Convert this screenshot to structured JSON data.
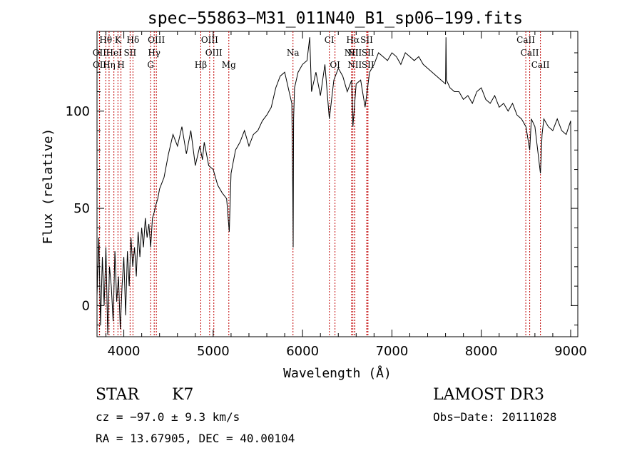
{
  "chart_data": {
    "type": "line",
    "title": "spec−55863−M31_011N40_B1_sp06−199.fits",
    "xlabel": "Wavelength (Å)",
    "ylabel": "Flux (relative)",
    "xlim": [
      3700,
      9080
    ],
    "ylim": [
      -16,
      141
    ],
    "xticks": [
      4000,
      5000,
      6000,
      7000,
      8000,
      9000
    ],
    "yticks": [
      0,
      50,
      100
    ],
    "line_color": "#000000",
    "marker_color": "#c00000",
    "spectrum": {
      "x": [
        3700,
        3720,
        3740,
        3760,
        3780,
        3800,
        3820,
        3840,
        3860,
        3880,
        3900,
        3920,
        3940,
        3960,
        3980,
        4000,
        4020,
        4040,
        4060,
        4080,
        4100,
        4120,
        4140,
        4160,
        4180,
        4200,
        4220,
        4240,
        4260,
        4280,
        4300,
        4320,
        4340,
        4360,
        4380,
        4400,
        4450,
        4500,
        4550,
        4600,
        4650,
        4700,
        4750,
        4800,
        4850,
        4880,
        4900,
        4950,
        5000,
        5050,
        5100,
        5150,
        5180,
        5200,
        5250,
        5300,
        5350,
        5400,
        5450,
        5500,
        5550,
        5600,
        5650,
        5700,
        5750,
        5800,
        5850,
        5880,
        5890,
        5895,
        5900,
        5910,
        5950,
        6000,
        6050,
        6080,
        6100,
        6150,
        6200,
        6250,
        6300,
        6350,
        6400,
        6450,
        6500,
        6550,
        6563,
        6600,
        6650,
        6700,
        6750,
        6800,
        6850,
        6900,
        6950,
        7000,
        7050,
        7100,
        7150,
        7200,
        7250,
        7300,
        7350,
        7400,
        7450,
        7500,
        7550,
        7600,
        7605,
        7610,
        7650,
        7700,
        7750,
        7800,
        7850,
        7900,
        7950,
        8000,
        8050,
        8100,
        8150,
        8200,
        8250,
        8300,
        8350,
        8400,
        8450,
        8500,
        8542,
        8560,
        8600,
        8662,
        8680,
        8700,
        8750,
        8800,
        8850,
        8900,
        8950,
        9000,
        9005,
        9010,
        9020
      ],
      "y": [
        5,
        35,
        -10,
        25,
        0,
        30,
        -15,
        20,
        10,
        -8,
        28,
        2,
        15,
        -12,
        10,
        25,
        -5,
        28,
        10,
        35,
        20,
        30,
        15,
        38,
        25,
        40,
        30,
        45,
        35,
        42,
        30,
        45,
        48,
        52,
        55,
        60,
        66,
        78,
        88,
        82,
        92,
        78,
        90,
        72,
        82,
        75,
        84,
        72,
        70,
        62,
        58,
        55,
        38,
        68,
        80,
        84,
        90,
        82,
        88,
        90,
        95,
        98,
        102,
        112,
        118,
        120,
        110,
        104,
        60,
        30,
        96,
        112,
        120,
        124,
        126,
        138,
        110,
        120,
        108,
        124,
        96,
        116,
        122,
        118,
        110,
        116,
        92,
        114,
        116,
        102,
        120,
        124,
        130,
        128,
        126,
        130,
        128,
        124,
        130,
        128,
        126,
        128,
        124,
        122,
        120,
        118,
        116,
        114,
        138,
        116,
        112,
        110,
        110,
        106,
        108,
        104,
        110,
        112,
        106,
        104,
        108,
        102,
        104,
        100,
        104,
        98,
        96,
        92,
        80,
        96,
        92,
        68,
        88,
        96,
        92,
        90,
        96,
        90,
        88,
        95,
        60,
        0,
        0
      ]
    },
    "emission_lines": [
      {
        "name": "Hθ",
        "x": 3798,
        "row": 1
      },
      {
        "name": "K",
        "x": 3934,
        "row": 1
      },
      {
        "name": "Hδ",
        "x": 4102,
        "row": 1
      },
      {
        "name": "OIII",
        "x": 4364,
        "row": 1
      },
      {
        "name": "OIII",
        "x": 4960,
        "row": 1
      },
      {
        "name": "CI",
        "x": 6300,
        "row": 1
      },
      {
        "name": "Hα",
        "x": 6563,
        "row": 1
      },
      {
        "name": "SII",
        "x": 6717,
        "row": 1
      },
      {
        "name": "CaII",
        "x": 8498,
        "row": 1
      },
      {
        "name": "OII",
        "x": 3727,
        "row": 2
      },
      {
        "name": "HeI",
        "x": 3889,
        "row": 2
      },
      {
        "name": "SII",
        "x": 4070,
        "row": 2
      },
      {
        "name": "Hγ",
        "x": 4340,
        "row": 2
      },
      {
        "name": "OIII",
        "x": 5007,
        "row": 2
      },
      {
        "name": "Na",
        "x": 5893,
        "row": 2
      },
      {
        "name": "NII",
        "x": 6548,
        "row": 2
      },
      {
        "name": "NII",
        "x": 6584,
        "row": 2
      },
      {
        "name": "SII",
        "x": 6731,
        "row": 2
      },
      {
        "name": "CaII",
        "x": 8542,
        "row": 2
      },
      {
        "name": "OII",
        "x": 3729,
        "row": 3
      },
      {
        "name": "Hη",
        "x": 3835,
        "row": 3
      },
      {
        "name": "H",
        "x": 3968,
        "row": 3
      },
      {
        "name": "G",
        "x": 4300,
        "row": 3
      },
      {
        "name": "Hβ",
        "x": 4861,
        "row": 3
      },
      {
        "name": "Mg",
        "x": 5175,
        "row": 3
      },
      {
        "name": "OI",
        "x": 6363,
        "row": 3
      },
      {
        "name": "NII",
        "x": 6584,
        "row": 3
      },
      {
        "name": "SII",
        "x": 6731,
        "row": 3
      },
      {
        "name": "CaII",
        "x": 8662,
        "row": 3
      }
    ]
  },
  "info": {
    "class": "STAR",
    "subclass": "K7",
    "survey": "LAMOST DR3",
    "cz": "cz = −97.0 ± 9.3 km/s",
    "obs_date": "Obs−Date: 20111028",
    "coords": "RA =  13.67905, DEC =  40.00104"
  }
}
